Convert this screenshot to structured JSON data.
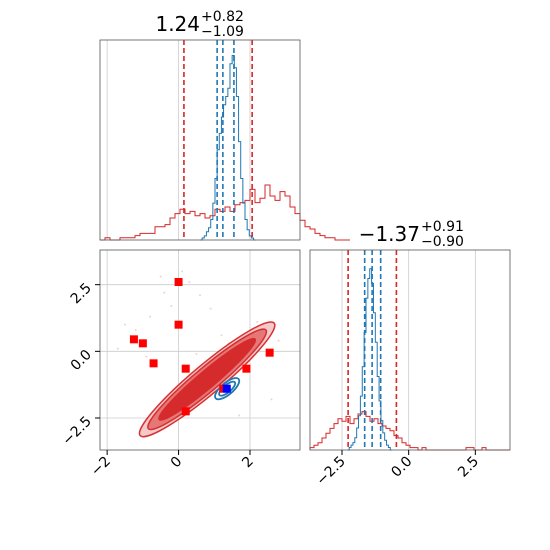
{
  "colors": {
    "red": "#d62728",
    "red_mid": "#e57373",
    "red_light": "#f4c7c7",
    "blue": "#1f77b4",
    "marker_blue": "#0000ff",
    "marker_red": "#ff0000",
    "grid": "#cccccc"
  },
  "chart_data": {
    "type": "corner",
    "parameters": [
      {
        "title_value": "1.24",
        "title_plus": "+0.82",
        "title_minus": "−1.09",
        "lim": [
          -2.2,
          3.4
        ],
        "red_quantiles": [
          0.15,
          1.24,
          2.06
        ],
        "blue_quantiles": [
          1.08,
          1.24,
          1.55
        ]
      },
      {
        "title_value": "−1.37",
        "title_plus": "+0.91",
        "title_minus": "−0.90",
        "lim": [
          -3.7,
          3.8
        ],
        "red_quantiles": [
          -2.27,
          -1.37,
          -0.46
        ],
        "blue_quantiles": [
          -1.65,
          -1.37,
          -1.05
        ]
      }
    ],
    "x_ticks_param1": [
      -2,
      0,
      2
    ],
    "x_ticks_param2": [
      -2.5,
      0.0,
      2.5
    ],
    "y_ticks_param2": [
      2.5,
      0.0,
      -2.5
    ],
    "x_tick_labels_param1": [
      "−2",
      "0",
      "2"
    ],
    "x_tick_labels_param2": [
      "−2.5",
      "0.0",
      "2.5"
    ],
    "y_tick_labels_param2": [
      "2.5",
      "0.0",
      "−2.5"
    ],
    "red_hist_p1": {
      "bin_edges_start": -2.2,
      "bin_width": 0.14,
      "counts": [
        0,
        1,
        0,
        0,
        1,
        1,
        1,
        2,
        3,
        3,
        3,
        6,
        6,
        7,
        10,
        12,
        14,
        12,
        13,
        11,
        12,
        10,
        11,
        14,
        13,
        15,
        13,
        16,
        17,
        18,
        23,
        17,
        19,
        25,
        20,
        18,
        22,
        20,
        15,
        12,
        9,
        6,
        5,
        3,
        2,
        1,
        1,
        0,
        0,
        0
      ]
    },
    "blue_hist_p1": {
      "bin_edges_start": 0.6,
      "bin_width": 0.06,
      "counts": [
        0,
        1,
        2,
        4,
        6,
        10,
        18,
        30,
        44,
        52,
        60,
        66,
        70,
        74,
        86,
        90,
        84,
        70,
        48,
        30,
        18,
        10,
        5,
        2,
        1,
        0
      ]
    },
    "red_hist_p2": {
      "bin_edges_start": -3.7,
      "bin_width": 0.15,
      "counts": [
        1,
        2,
        3,
        5,
        7,
        9,
        11,
        13,
        12,
        14,
        11,
        13,
        15,
        16,
        14,
        12,
        13,
        11,
        10,
        9,
        8,
        6,
        5,
        3,
        2,
        1,
        1,
        0,
        1,
        0,
        0,
        0,
        0,
        0,
        0,
        0,
        0,
        0,
        0,
        1,
        1,
        0,
        0,
        1,
        0,
        0,
        0,
        0,
        0,
        0
      ]
    },
    "blue_hist_p2": {
      "bin_edges_start": -2.3,
      "bin_width": 0.07,
      "counts": [
        0,
        1,
        2,
        3,
        5,
        9,
        14,
        22,
        34,
        48,
        62,
        70,
        74,
        68,
        56,
        44,
        30,
        20,
        12,
        7,
        4,
        2,
        1,
        0
      ]
    },
    "red_contour_levels": [
      {
        "center": [
          0.8,
          -1.05
        ],
        "a": 2.45,
        "b": 0.55
      },
      {
        "center": [
          0.8,
          -1.05
        ],
        "a": 2.15,
        "b": 0.45
      },
      {
        "center": [
          0.8,
          -1.05
        ],
        "a": 1.75,
        "b": 0.32
      }
    ],
    "blue_contour_levels": [
      {
        "center": [
          1.36,
          -1.4
        ],
        "a": 0.42,
        "b": 0.22
      },
      {
        "center": [
          1.36,
          -1.4
        ],
        "a": 0.28,
        "b": 0.14
      }
    ],
    "contour_rotation_deg": 40,
    "red_markers": [
      [
        0.0,
        2.6
      ],
      [
        0.0,
        1.0
      ],
      [
        -1.25,
        0.45
      ],
      [
        -1.0,
        0.3
      ],
      [
        -0.7,
        -0.45
      ],
      [
        0.2,
        -0.65
      ],
      [
        2.55,
        -0.05
      ],
      [
        1.9,
        -0.65
      ],
      [
        1.25,
        -1.4
      ],
      [
        0.2,
        -2.25
      ]
    ],
    "blue_marker": [
      1.35,
      -1.4
    ]
  }
}
